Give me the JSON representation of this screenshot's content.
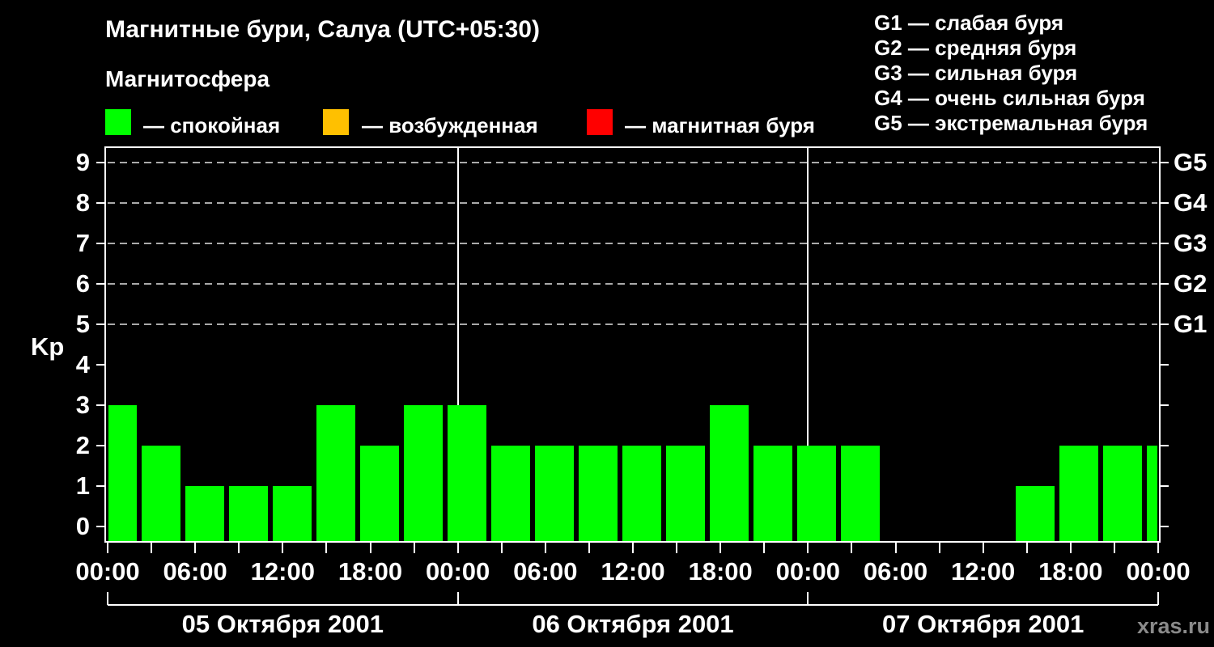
{
  "header": {
    "title": "Магнитные бури, Салуа (UTC+05:30)",
    "subtitle": "Магнитосфера",
    "legend": [
      {
        "label": "— спокойная",
        "color": "#00FF00"
      },
      {
        "label": "— возбужденная",
        "color": "#FFC000"
      },
      {
        "label": "— магнитная буря",
        "color": "#FF0000"
      }
    ],
    "storm_scale": [
      "G1 — слабая буря",
      "G2 — средняя буря",
      "G3 — сильная буря",
      "G4 — очень сильная буря",
      "G5 — экстремальная буря"
    ]
  },
  "watermark": "xras.ru",
  "chart_data": {
    "type": "bar",
    "title": "Магнитные бури, Салуа (UTC+05:30)",
    "ylabel": "Kp",
    "ylim": [
      0,
      9
    ],
    "grid": "dashed horizontal at Kp 5-9 only",
    "y_ticks": [
      0,
      1,
      2,
      3,
      4,
      5,
      6,
      7,
      8,
      9
    ],
    "grid_levels": [
      5,
      6,
      7,
      8,
      9
    ],
    "right_axis": [
      {
        "label": "G1",
        "kp": 5
      },
      {
        "label": "G2",
        "kp": 6
      },
      {
        "label": "G3",
        "kp": 7
      },
      {
        "label": "G4",
        "kp": 8
      },
      {
        "label": "G5",
        "kp": 9
      }
    ],
    "x_labels": [
      "00:00",
      "06:00",
      "12:00",
      "18:00",
      "00:00",
      "06:00",
      "12:00",
      "18:00",
      "00:00",
      "06:00",
      "12:00",
      "18:00",
      "00:00"
    ],
    "slots_per_day": 8,
    "hours_per_slot": 3,
    "days": [
      {
        "date": "05 Октября 2001",
        "values": [
          3,
          2,
          1,
          1,
          1,
          3,
          2,
          3
        ]
      },
      {
        "date": "06 Октября 2001",
        "values": [
          3,
          2,
          2,
          2,
          2,
          2,
          3,
          2
        ]
      },
      {
        "date": "07 Октября 2001",
        "values": [
          2,
          2,
          0,
          0,
          0,
          1,
          2,
          2
        ]
      }
    ],
    "next_day_partial_value": 2,
    "bar_colors": {
      "quiet": "#00FF00",
      "excited": "#FFC000",
      "storm": "#FF0000"
    },
    "color_thresholds": {
      "excited_min_kp": 4,
      "storm_min_kp": 5
    }
  }
}
